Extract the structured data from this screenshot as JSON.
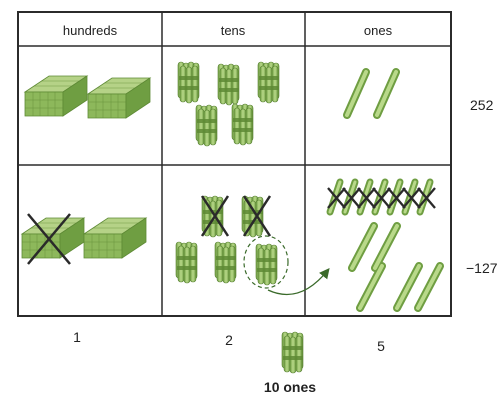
{
  "table": {
    "headers": [
      "hundreds",
      "tens",
      "ones"
    ],
    "rows": [
      {
        "label": "252",
        "cells": [
          {
            "hundreds_blocks": 2,
            "crossed": 0
          },
          {
            "tens_bundles": 5,
            "crossed": 0
          },
          {
            "ones_sticks": 2,
            "crossed": 0
          }
        ]
      },
      {
        "label": "−127",
        "cells": [
          {
            "hundreds_blocks": 2,
            "crossed": 1
          },
          {
            "tens_bundles": 5,
            "crossed": 2,
            "regrouped": 1
          },
          {
            "ones_sticks": 7,
            "crossed": 7,
            "extra_sticks": 5
          }
        ]
      }
    ],
    "results": [
      "1",
      "2",
      "5"
    ]
  },
  "bottom_label": "10 ones",
  "colors": {
    "green_light": "#a9c97a",
    "green_mid": "#8db85b",
    "green_dark": "#5e8a35",
    "grid_line": "#2b2b2b",
    "header_bg": "#ffffff",
    "cross": "#2a2a2a"
  }
}
